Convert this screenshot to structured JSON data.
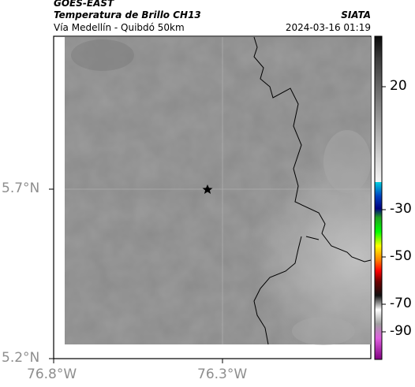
{
  "header": {
    "satellite": "GOES-EAST",
    "product": "Temperatura de Brillo CH13",
    "source": "SIATA",
    "region": "Vía Medellín - Quibdó 50km",
    "datetime": "2024-03-16 01:19"
  },
  "map": {
    "lat_labels": [
      "5.7°N",
      "5.2°N"
    ],
    "lon_labels": [
      "76.8°W",
      "76.3°W"
    ],
    "marker_icon": "star-icon"
  },
  "colorbar": {
    "tick_labels": [
      "20",
      "-30",
      "-50",
      "-70",
      "-90"
    ]
  },
  "colors": {
    "background_gray": "#8a8a8a",
    "axis_label_gray": "#8e8e8e",
    "border_line": "#000000"
  }
}
